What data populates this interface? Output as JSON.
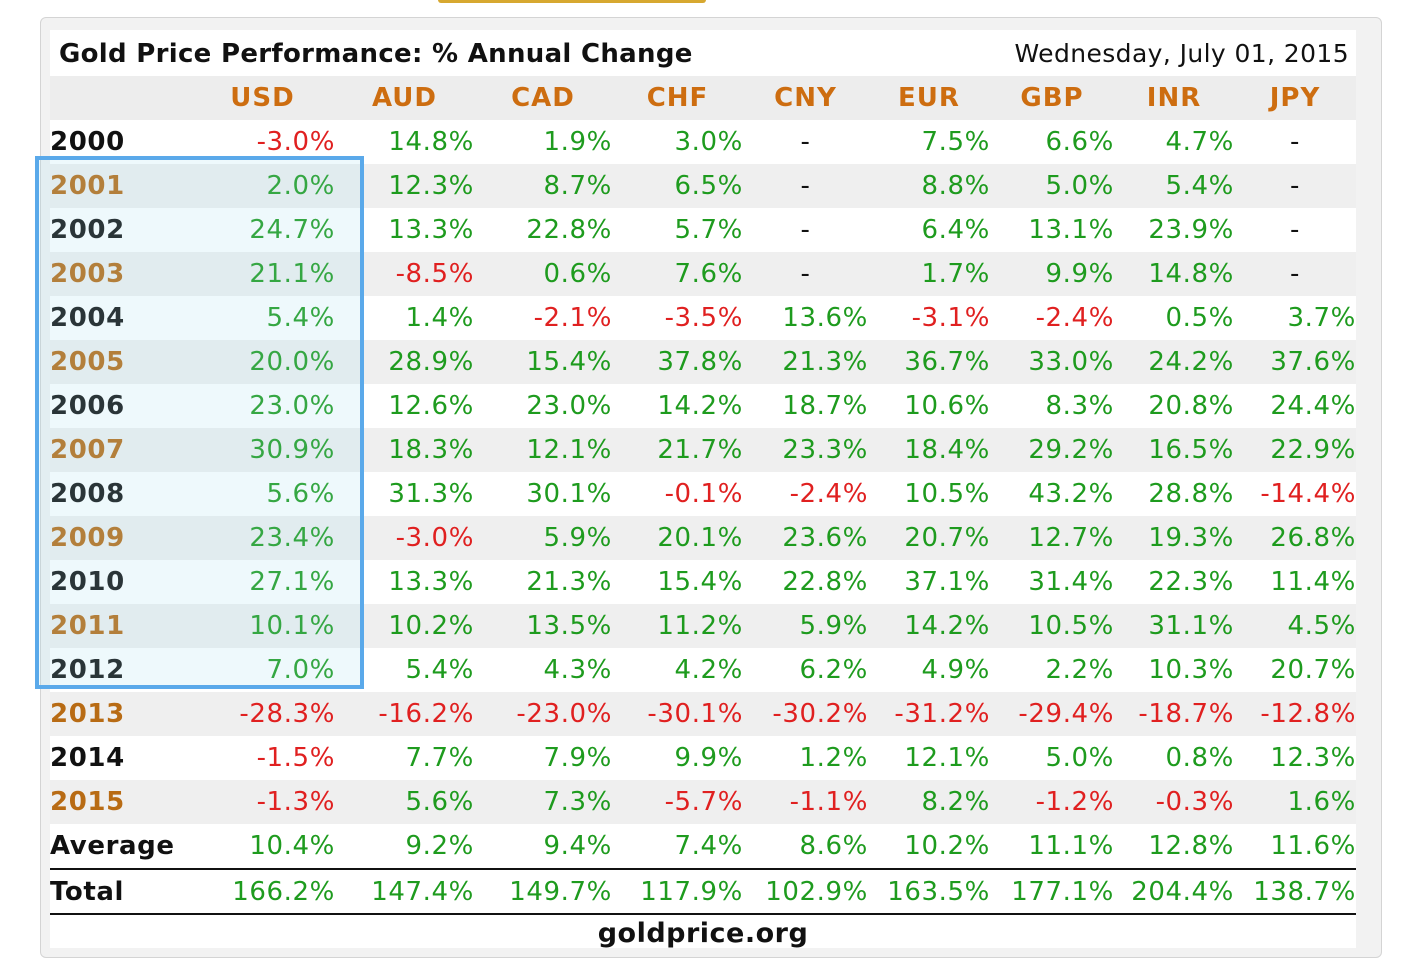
{
  "widget": {
    "title": "Gold Price Performance: % Annual Change",
    "date": "Wednesday, July 01, 2015",
    "footer": "goldprice.org"
  },
  "currencies": [
    "USD",
    "AUD",
    "CAD",
    "CHF",
    "CNY",
    "EUR",
    "GBP",
    "INR",
    "JPY"
  ],
  "rows": [
    {
      "year": "2000",
      "values": [
        "-3.0%",
        "14.8%",
        "1.9%",
        "3.0%",
        "-",
        "7.5%",
        "6.6%",
        "4.7%",
        "-"
      ]
    },
    {
      "year": "2001",
      "values": [
        "2.0%",
        "12.3%",
        "8.7%",
        "6.5%",
        "-",
        "8.8%",
        "5.0%",
        "5.4%",
        "-"
      ]
    },
    {
      "year": "2002",
      "values": [
        "24.7%",
        "13.3%",
        "22.8%",
        "5.7%",
        "-",
        "6.4%",
        "13.1%",
        "23.9%",
        "-"
      ]
    },
    {
      "year": "2003",
      "values": [
        "21.1%",
        "-8.5%",
        "0.6%",
        "7.6%",
        "-",
        "1.7%",
        "9.9%",
        "14.8%",
        "-"
      ]
    },
    {
      "year": "2004",
      "values": [
        "5.4%",
        "1.4%",
        "-2.1%",
        "-3.5%",
        "13.6%",
        "-3.1%",
        "-2.4%",
        "0.5%",
        "3.7%"
      ]
    },
    {
      "year": "2005",
      "values": [
        "20.0%",
        "28.9%",
        "15.4%",
        "37.8%",
        "21.3%",
        "36.7%",
        "33.0%",
        "24.2%",
        "37.6%"
      ]
    },
    {
      "year": "2006",
      "values": [
        "23.0%",
        "12.6%",
        "23.0%",
        "14.2%",
        "18.7%",
        "10.6%",
        "8.3%",
        "20.8%",
        "24.4%"
      ]
    },
    {
      "year": "2007",
      "values": [
        "30.9%",
        "18.3%",
        "12.1%",
        "21.7%",
        "23.3%",
        "18.4%",
        "29.2%",
        "16.5%",
        "22.9%"
      ]
    },
    {
      "year": "2008",
      "values": [
        "5.6%",
        "31.3%",
        "30.1%",
        "-0.1%",
        "-2.4%",
        "10.5%",
        "43.2%",
        "28.8%",
        "-14.4%"
      ]
    },
    {
      "year": "2009",
      "values": [
        "23.4%",
        "-3.0%",
        "5.9%",
        "20.1%",
        "23.6%",
        "20.7%",
        "12.7%",
        "19.3%",
        "26.8%"
      ]
    },
    {
      "year": "2010",
      "values": [
        "27.1%",
        "13.3%",
        "21.3%",
        "15.4%",
        "22.8%",
        "37.1%",
        "31.4%",
        "22.3%",
        "11.4%"
      ]
    },
    {
      "year": "2011",
      "values": [
        "10.1%",
        "10.2%",
        "13.5%",
        "11.2%",
        "5.9%",
        "14.2%",
        "10.5%",
        "31.1%",
        "4.5%"
      ]
    },
    {
      "year": "2012",
      "values": [
        "7.0%",
        "5.4%",
        "4.3%",
        "4.2%",
        "6.2%",
        "4.9%",
        "2.2%",
        "10.3%",
        "20.7%"
      ]
    },
    {
      "year": "2013",
      "values": [
        "-28.3%",
        "-16.2%",
        "-23.0%",
        "-30.1%",
        "-30.2%",
        "-31.2%",
        "-29.4%",
        "-18.7%",
        "-12.8%"
      ]
    },
    {
      "year": "2014",
      "values": [
        "-1.5%",
        "7.7%",
        "7.9%",
        "9.9%",
        "1.2%",
        "12.1%",
        "5.0%",
        "0.8%",
        "12.3%"
      ]
    },
    {
      "year": "2015",
      "values": [
        "-1.3%",
        "5.6%",
        "7.3%",
        "-5.7%",
        "-1.1%",
        "8.2%",
        "-1.2%",
        "-0.3%",
        "1.6%"
      ]
    }
  ],
  "average": {
    "label": "Average",
    "values": [
      "10.4%",
      "9.2%",
      "9.4%",
      "7.4%",
      "8.6%",
      "10.2%",
      "11.1%",
      "12.8%",
      "11.6%"
    ]
  },
  "total": {
    "label": "Total",
    "values": [
      "166.2%",
      "147.4%",
      "149.7%",
      "117.9%",
      "102.9%",
      "163.5%",
      "177.1%",
      "204.4%",
      "138.7%"
    ]
  },
  "highlight": {
    "label": "USD 2001-2012 selection"
  },
  "colors": {
    "positive": "#1e9b1e",
    "negative": "#e02020",
    "header": "#cd6d10",
    "highlight": "#5aa9ea"
  }
}
